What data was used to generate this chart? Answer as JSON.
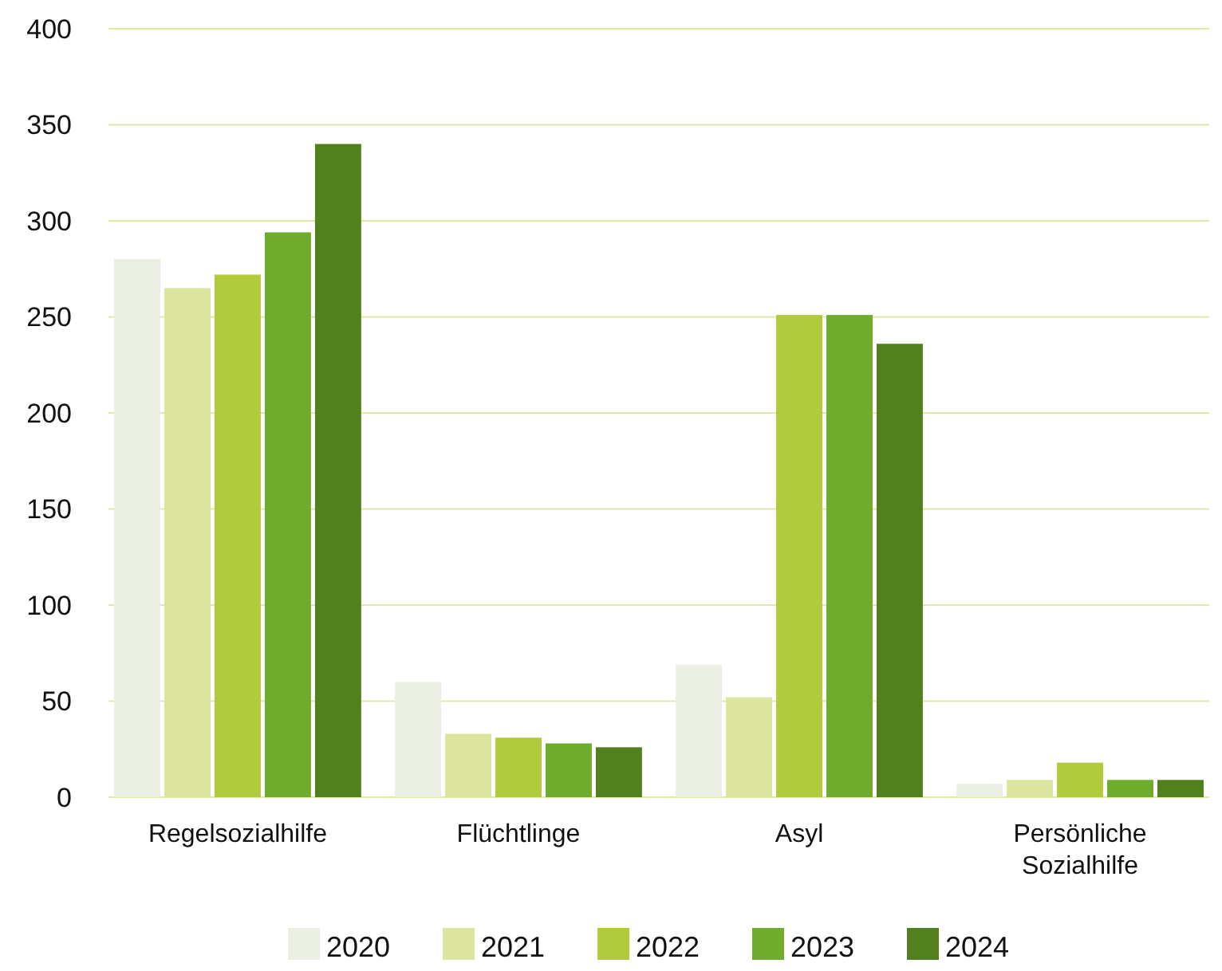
{
  "chart_data": {
    "type": "bar",
    "categories": [
      "Regelsozialhilfe",
      "Flüchtlinge",
      "Asyl",
      "Persönliche Sozialhilfe"
    ],
    "series": [
      {
        "name": "2020",
        "color": "#ebefe3",
        "values": [
          280,
          60,
          69,
          7
        ]
      },
      {
        "name": "2021",
        "color": "#dce5a0",
        "values": [
          265,
          33,
          52,
          9
        ]
      },
      {
        "name": "2022",
        "color": "#b2cb3c",
        "values": [
          272,
          31,
          251,
          18
        ]
      },
      {
        "name": "2023",
        "color": "#6fac2d",
        "values": [
          294,
          28,
          251,
          9
        ]
      },
      {
        "name": "2024",
        "color": "#52801f",
        "values": [
          340,
          26,
          236,
          9
        ]
      }
    ],
    "ylim": [
      0,
      400
    ],
    "yticks": [
      0,
      50,
      100,
      150,
      200,
      250,
      300,
      350,
      400
    ],
    "grid": "y",
    "legend": "bottom"
  }
}
